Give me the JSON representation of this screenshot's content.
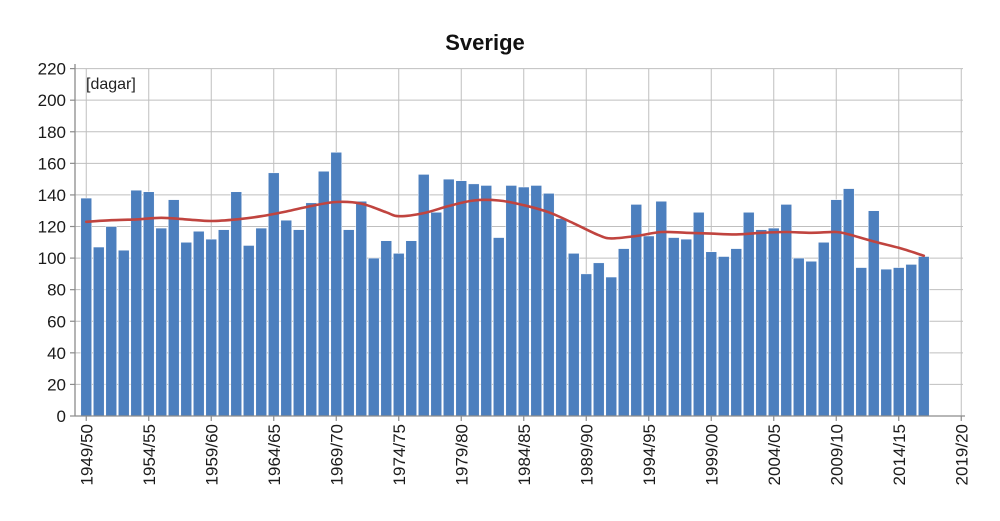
{
  "title": "Sverige",
  "unit_label": "[dagar]",
  "chart_data": {
    "type": "bar",
    "title": "Sverige",
    "ylabel": "[dagar]",
    "ylim": [
      0,
      220
    ],
    "y_tick_step": 20,
    "y_tick_labels": [
      "0",
      "20",
      "40",
      "60",
      "80",
      "100",
      "120",
      "140",
      "160",
      "180",
      "200",
      "220"
    ],
    "grid": true,
    "legend": "none",
    "categories": [
      "1949/50",
      "1950/51",
      "1951/52",
      "1952/53",
      "1953/54",
      "1954/55",
      "1955/56",
      "1956/57",
      "1957/58",
      "1958/59",
      "1959/60",
      "1960/61",
      "1961/62",
      "1962/63",
      "1963/64",
      "1964/65",
      "1965/66",
      "1966/67",
      "1967/68",
      "1968/69",
      "1969/70",
      "1970/71",
      "1971/72",
      "1972/73",
      "1973/74",
      "1974/75",
      "1975/76",
      "1976/77",
      "1977/78",
      "1978/79",
      "1979/80",
      "1980/81",
      "1981/82",
      "1982/83",
      "1983/84",
      "1984/85",
      "1985/86",
      "1986/87",
      "1987/88",
      "1988/89",
      "1989/90",
      "1990/91",
      "1991/92",
      "1992/93",
      "1993/94",
      "1994/95",
      "1995/96",
      "1996/97",
      "1997/98",
      "1998/99",
      "1999/00",
      "2000/01",
      "2001/02",
      "2002/03",
      "2003/04",
      "2004/05",
      "2005/06",
      "2006/07",
      "2007/08",
      "2008/09",
      "2009/10",
      "2010/11",
      "2011/12",
      "2012/13",
      "2013/14",
      "2014/15",
      "2015/16",
      "2016/17"
    ],
    "values": [
      138,
      107,
      120,
      105,
      143,
      142,
      119,
      137,
      110,
      117,
      112,
      118,
      142,
      108,
      119,
      154,
      124,
      118,
      135,
      155,
      167,
      118,
      136,
      100,
      111,
      103,
      111,
      153,
      129,
      150,
      149,
      147,
      146,
      113,
      146,
      145,
      146,
      141,
      125,
      103,
      90,
      97,
      88,
      106,
      134,
      114,
      136,
      113,
      112,
      129,
      104,
      101,
      106,
      129,
      118,
      119,
      134,
      100,
      98,
      110,
      137,
      144,
      94,
      130,
      93,
      94,
      96,
      101
    ],
    "x_tick_labels": [
      "1949/50",
      "1954/55",
      "1959/60",
      "1964/65",
      "1969/70",
      "1974/75",
      "1979/80",
      "1984/85",
      "1989/90",
      "1994/95",
      "1999/00",
      "2004/05",
      "2009/10",
      "2014/15",
      "2019/20"
    ],
    "x_tick_every": 5,
    "trend_line": {
      "name": "smoothed-average",
      "color": "#C0443F",
      "points": [
        [
          0,
          123
        ],
        [
          2,
          124
        ],
        [
          4,
          124.5
        ],
        [
          6,
          125.5
        ],
        [
          8,
          124.5
        ],
        [
          10,
          123.5
        ],
        [
          12,
          124.5
        ],
        [
          14,
          126.5
        ],
        [
          16,
          129.5
        ],
        [
          18,
          133
        ],
        [
          20,
          135.5
        ],
        [
          22,
          134.5
        ],
        [
          24,
          129
        ],
        [
          25,
          126.5
        ],
        [
          27,
          128.5
        ],
        [
          29,
          133
        ],
        [
          31,
          136.5
        ],
        [
          33,
          136.5
        ],
        [
          35,
          133.5
        ],
        [
          37,
          129
        ],
        [
          39,
          122
        ],
        [
          41,
          114.5
        ],
        [
          42,
          112.5
        ],
        [
          44,
          114
        ],
        [
          46,
          116.5
        ],
        [
          48,
          116
        ],
        [
          50,
          115.5
        ],
        [
          52,
          115
        ],
        [
          54,
          116
        ],
        [
          56,
          116.5
        ],
        [
          58,
          116
        ],
        [
          60,
          116.5
        ],
        [
          61,
          115
        ],
        [
          63,
          110.5
        ],
        [
          65,
          106.5
        ],
        [
          67,
          101.5
        ]
      ]
    },
    "bar_color": "#4C7FBE",
    "bar_edge_color": "#FFFFFF",
    "gridline_color": "#BFBFBF",
    "axis_color": "#8C8C8C",
    "text_color": "#1A1A1A"
  }
}
